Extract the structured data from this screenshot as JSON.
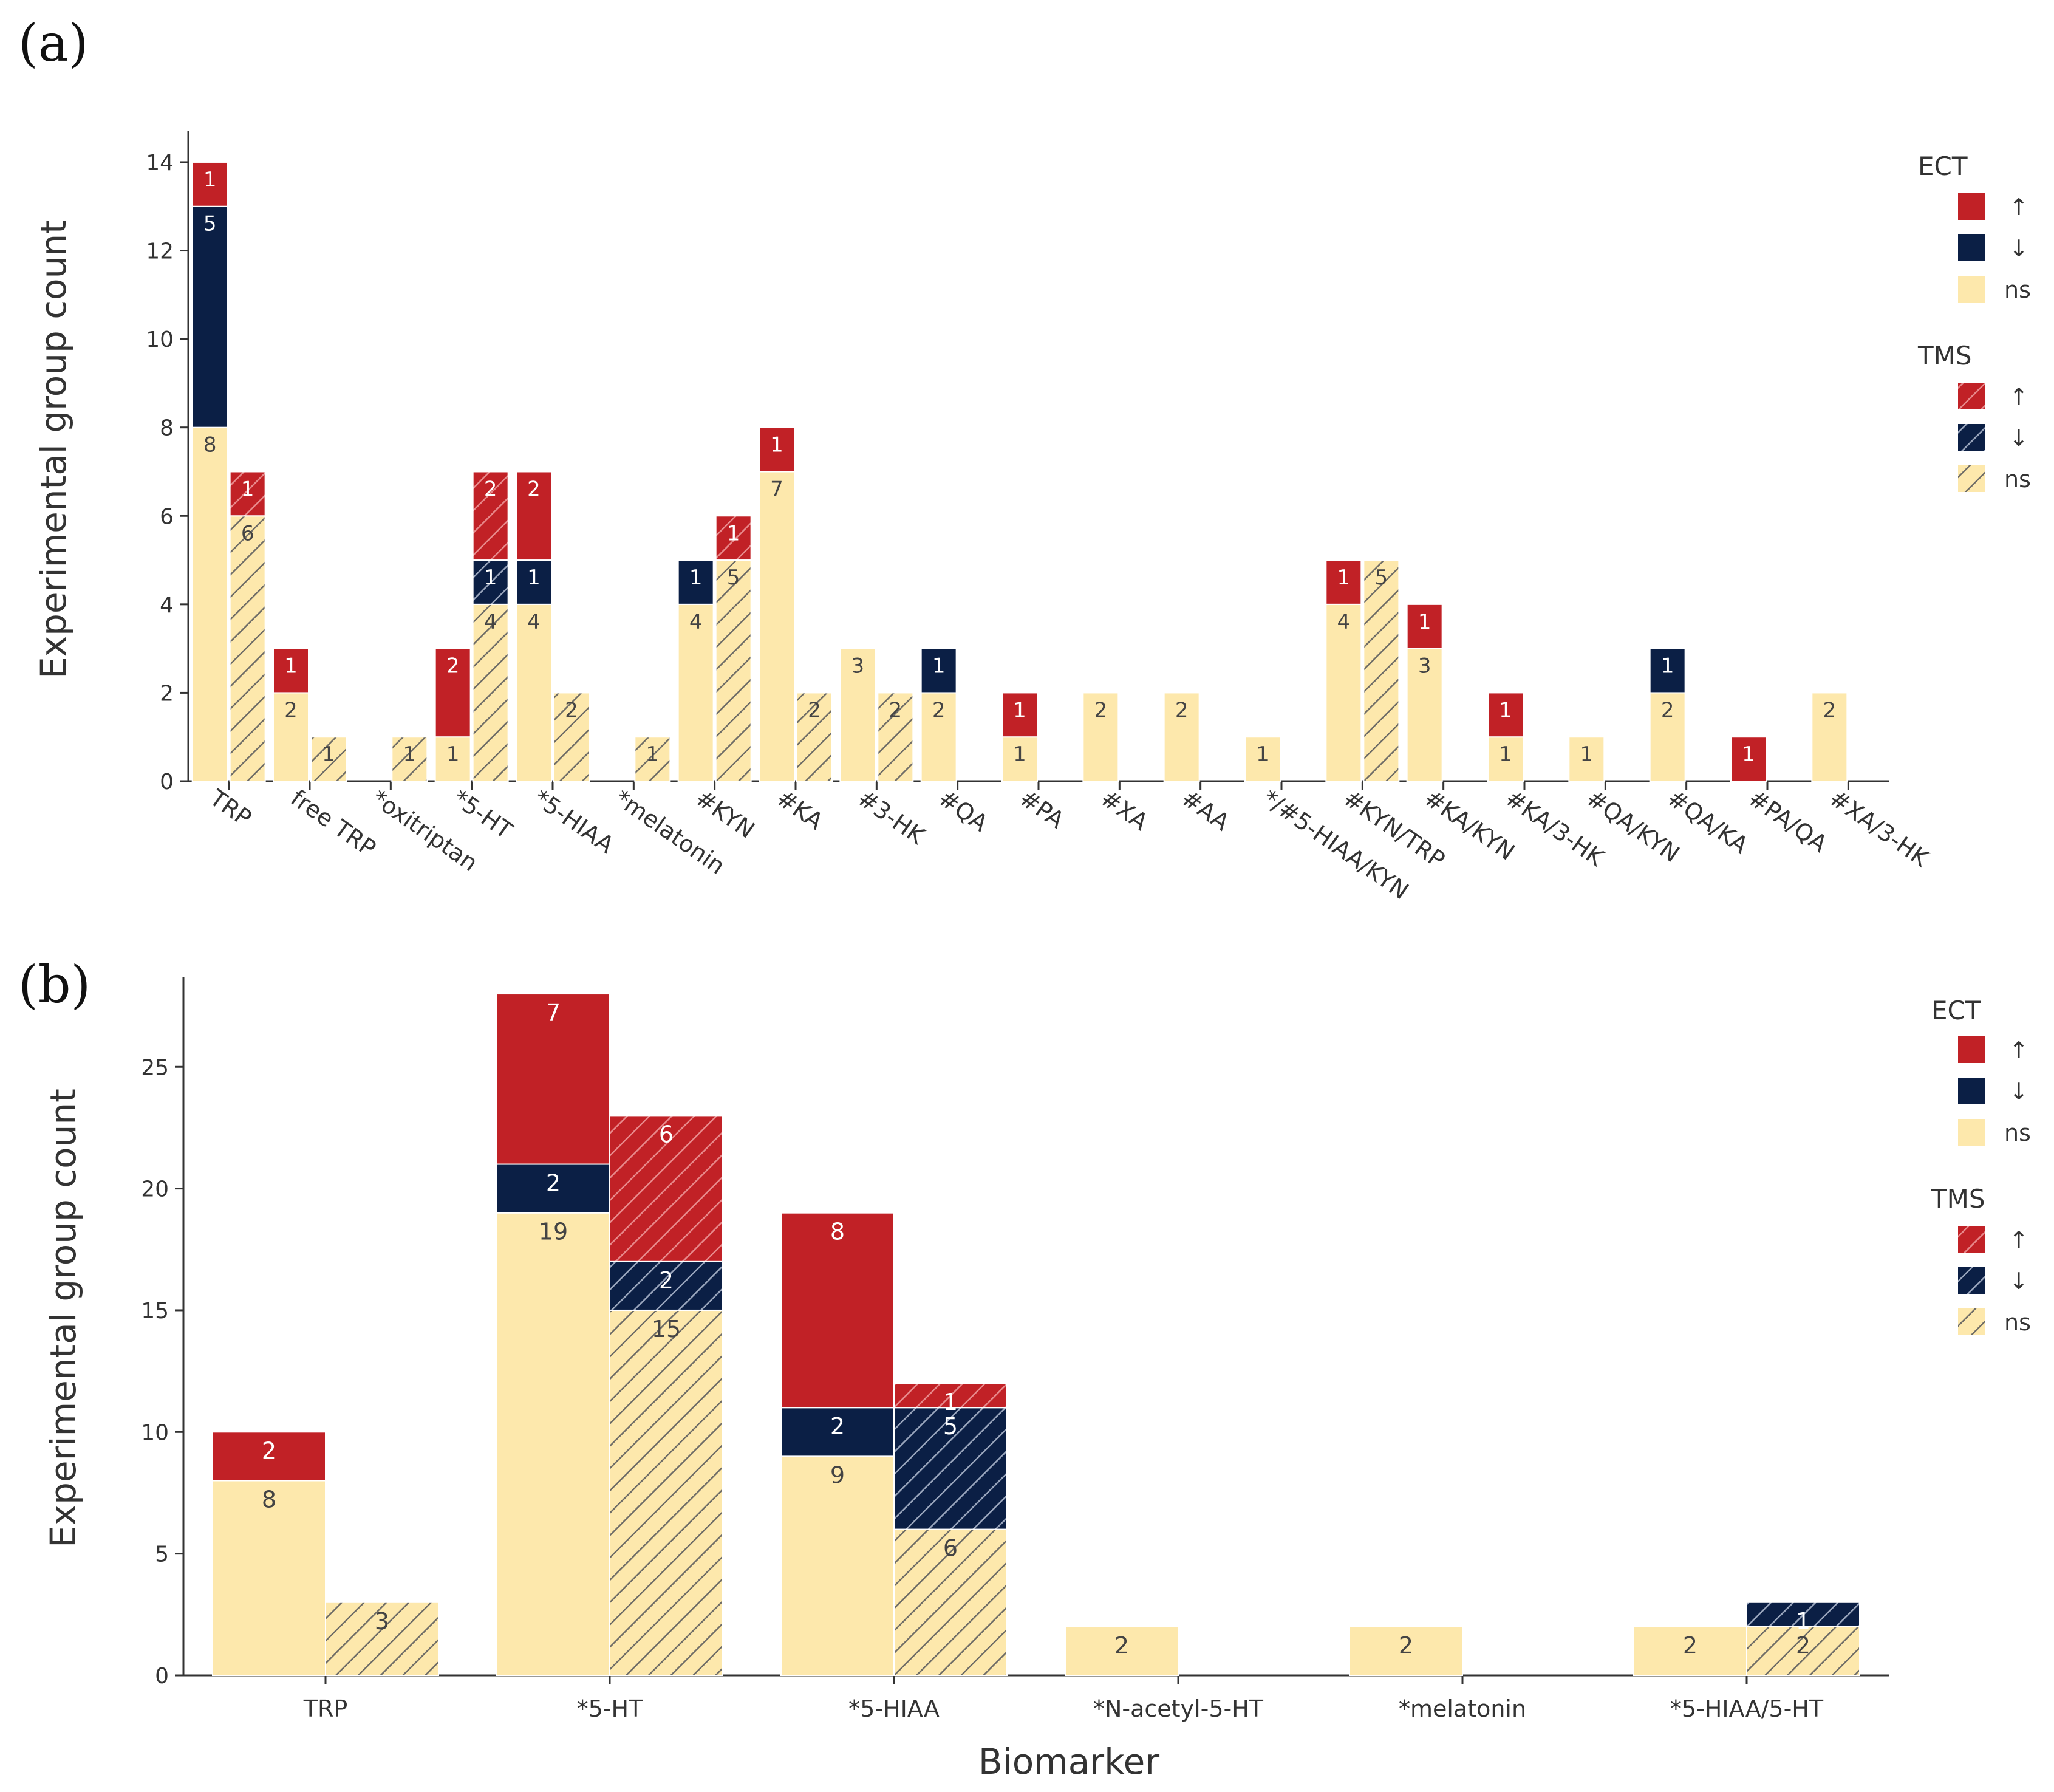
{
  "colors": {
    "up": "#c12126",
    "down": "#0b1f45",
    "ns": "#fde8ac",
    "hatch_on_ns": "#6e6c66",
    "hatch_on_dark": "#ffffff",
    "axis": "#333333"
  },
  "legend": {
    "ect_title": "ECT",
    "tms_title": "TMS",
    "up_label": "↑",
    "down_label": "↓",
    "ns_label": "ns"
  },
  "chart_data": [
    {
      "panel": "(a)",
      "type": "bar",
      "stacked": true,
      "ylabel": "Experimental group count",
      "xlabel": "",
      "ylim": [
        0,
        14.7
      ],
      "yticks": [
        0,
        2,
        4,
        6,
        8,
        10,
        12,
        14
      ],
      "tick_rotation": 35,
      "categories": [
        "TRP",
        "free TRP",
        "*oxitriptan",
        "*5-HT",
        "*5-HIAA",
        "*melatonin",
        "#KYN",
        "#KA",
        "#3-HK",
        "#QA",
        "#PA",
        "#XA",
        "#AA",
        "*/#5-HIAA/KYN",
        "#KYN/TRP",
        "#KA/KYN",
        "#KA/3-HK",
        "#QA/KYN",
        "#QA/KA",
        "#PA/QA",
        "#XA/3-HK"
      ],
      "series": [
        {
          "name": "ECT ns",
          "group": "ECT",
          "status": "ns",
          "values": [
            8,
            2,
            0,
            1,
            4,
            0,
            4,
            7,
            3,
            2,
            1,
            2,
            2,
            1,
            4,
            3,
            1,
            1,
            2,
            0,
            2
          ]
        },
        {
          "name": "ECT ↓",
          "group": "ECT",
          "status": "down",
          "values": [
            5,
            0,
            0,
            0,
            1,
            0,
            1,
            0,
            0,
            1,
            0,
            0,
            0,
            0,
            0,
            0,
            0,
            0,
            1,
            0,
            0
          ]
        },
        {
          "name": "ECT ↑",
          "group": "ECT",
          "status": "up",
          "values": [
            1,
            1,
            0,
            2,
            2,
            0,
            0,
            1,
            0,
            0,
            1,
            0,
            0,
            0,
            1,
            1,
            1,
            0,
            0,
            1,
            0
          ]
        },
        {
          "name": "TMS ns",
          "group": "TMS",
          "status": "ns",
          "values": [
            6,
            1,
            1,
            4,
            2,
            1,
            5,
            2,
            2,
            0,
            0,
            0,
            0,
            0,
            5,
            0,
            0,
            0,
            0,
            0,
            0
          ]
        },
        {
          "name": "TMS ↓",
          "group": "TMS",
          "status": "down",
          "values": [
            0,
            0,
            0,
            1,
            0,
            0,
            0,
            0,
            0,
            0,
            0,
            0,
            0,
            0,
            0,
            0,
            0,
            0,
            0,
            0,
            0
          ]
        },
        {
          "name": "TMS ↑",
          "group": "TMS",
          "status": "up",
          "values": [
            1,
            0,
            0,
            2,
            0,
            0,
            1,
            0,
            0,
            0,
            0,
            0,
            0,
            0,
            0,
            0,
            0,
            0,
            0,
            0,
            0
          ]
        }
      ]
    },
    {
      "panel": "(b)",
      "type": "bar",
      "stacked": true,
      "ylabel": "Experimental group count",
      "xlabel": "Biomarker",
      "ylim": [
        0,
        28.7
      ],
      "yticks": [
        0,
        5,
        10,
        15,
        20,
        25
      ],
      "tick_rotation": 0,
      "categories": [
        "TRP",
        "*5-HT",
        "*5-HIAA",
        "*N-acetyl-5-HT",
        "*melatonin",
        "*5-HIAA/5-HT"
      ],
      "series": [
        {
          "name": "ECT ns",
          "group": "ECT",
          "status": "ns",
          "values": [
            8,
            19,
            9,
            2,
            2,
            2
          ]
        },
        {
          "name": "ECT ↓",
          "group": "ECT",
          "status": "down",
          "values": [
            0,
            2,
            2,
            0,
            0,
            0
          ]
        },
        {
          "name": "ECT ↑",
          "group": "ECT",
          "status": "up",
          "values": [
            2,
            7,
            8,
            0,
            0,
            0
          ]
        },
        {
          "name": "TMS ns",
          "group": "TMS",
          "status": "ns",
          "values": [
            3,
            15,
            6,
            0,
            0,
            2
          ]
        },
        {
          "name": "TMS ↓",
          "group": "TMS",
          "status": "down",
          "values": [
            0,
            2,
            5,
            0,
            0,
            1
          ]
        },
        {
          "name": "TMS ↑",
          "group": "TMS",
          "status": "up",
          "values": [
            0,
            6,
            1,
            0,
            0,
            0
          ]
        }
      ]
    }
  ]
}
